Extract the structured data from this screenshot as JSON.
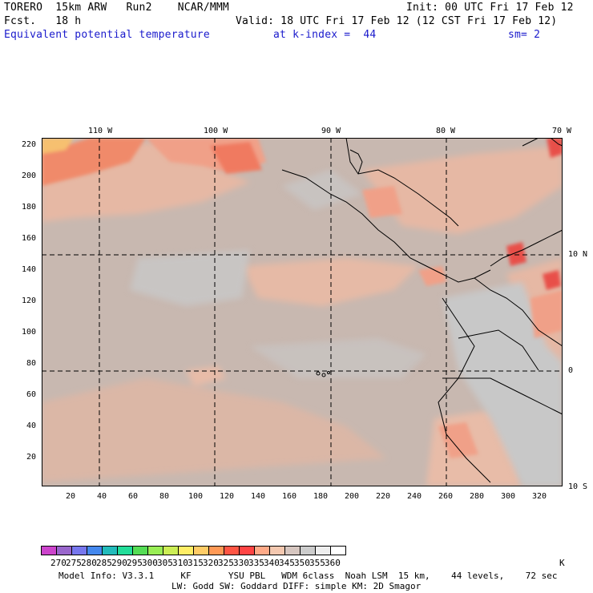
{
  "header": {
    "line1_left": "TORERO  15km ARW   Run2    NCAR/MMM",
    "line1_right": "Init: 00 UTC Fri 17 Feb 12",
    "line2_left": "Fcst.   18 h",
    "line2_right": "Valid: 18 UTC Fri 17 Feb 12 (12 CST Fri 17 Feb 12)",
    "line3_field": "Equivalent potential temperature",
    "line3_level": "at k-index =  44",
    "line3_sm": "sm= 2"
  },
  "map": {
    "longitude_labels": [
      "110 W",
      "100 W",
      "90 W",
      "80 W",
      "70 W"
    ],
    "latitude_labels": [
      "10 N",
      "0",
      "10 S"
    ],
    "y_grid_labels": [
      "220",
      "200",
      "180",
      "160",
      "140",
      "120",
      "100",
      "80",
      "60",
      "40",
      "20"
    ],
    "x_grid_labels": [
      "20",
      "40",
      "60",
      "80",
      "100",
      "120",
      "140",
      "160",
      "180",
      "200",
      "220",
      "240",
      "260",
      "280",
      "300",
      "320"
    ],
    "background_color": "#c8b8b0"
  },
  "colorbar": {
    "labels": [
      "270",
      "275",
      "280",
      "285",
      "290",
      "295",
      "300",
      "305",
      "310",
      "315",
      "320",
      "325",
      "330",
      "335",
      "340",
      "345",
      "350",
      "355",
      "360"
    ],
    "unit": "K",
    "colors": [
      "#cc44cc",
      "#9966cc",
      "#7777ee",
      "#4488ee",
      "#22bbbb",
      "#22dd99",
      "#55dd55",
      "#99ee55",
      "#ccee55",
      "#ffee66",
      "#ffcc66",
      "#ff9955",
      "#ff5544",
      "#ff4444",
      "#ffaa88",
      "#f4c8b0",
      "#d6c6c0",
      "#cccccc",
      "#eeeeee",
      "#ffffff"
    ]
  },
  "footer": {
    "line1": "Model Info: V3.3.1     KF       YSU PBL   WDM 6class  Noah LSM  15 km,    44 levels,    72 sec",
    "line2": "LW: Godd SW: Goddard DIFF: simple KM: 2D Smagor"
  }
}
